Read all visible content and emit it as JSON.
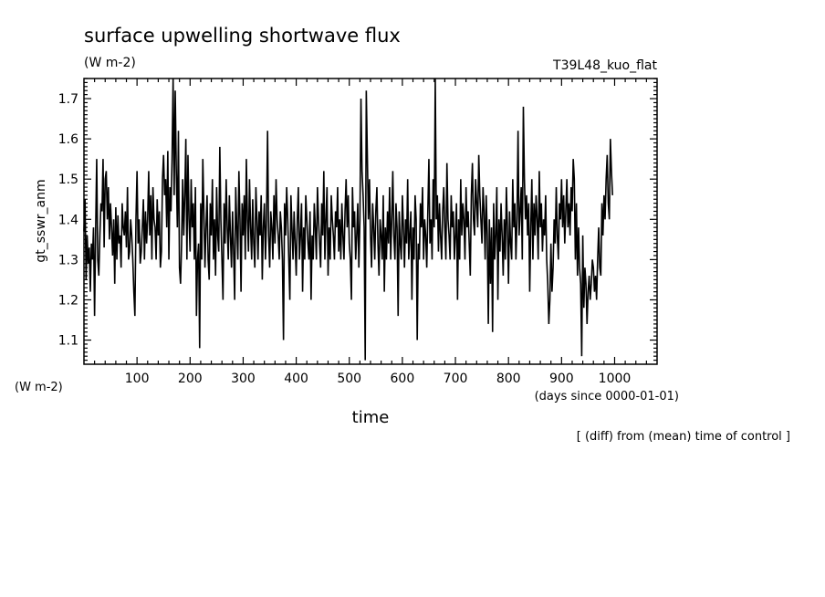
{
  "chart_data": {
    "type": "line",
    "title": "surface upwelling shortwave flux",
    "title_units": "(W m-2)",
    "experiment": "T39L48_kuo_flat",
    "ylabel": "gt_sswr_anm",
    "yunits": "(W m-2)",
    "xlabel": "time",
    "xunits": "(days since 0000-01-01)",
    "footnote": "[ (diff) from (mean) time of control ]",
    "xlim": [
      0,
      1080
    ],
    "ylim": [
      1.04,
      1.75
    ],
    "x_ticks": [
      100,
      200,
      300,
      400,
      500,
      600,
      700,
      800,
      900,
      1000
    ],
    "y_ticks": [
      1.1,
      1.2,
      1.3,
      1.4,
      1.5,
      1.6,
      1.7
    ],
    "grid": false,
    "legend": "none",
    "line_color": "#000000",
    "series": [
      {
        "x_start": 0,
        "x_step": 2,
        "values": [
          1.37,
          1.45,
          1.25,
          1.36,
          1.29,
          1.33,
          1.22,
          1.34,
          1.3,
          1.38,
          1.16,
          1.37,
          1.55,
          1.3,
          1.26,
          1.36,
          1.44,
          1.42,
          1.55,
          1.33,
          1.5,
          1.52,
          1.4,
          1.48,
          1.35,
          1.44,
          1.38,
          1.31,
          1.4,
          1.24,
          1.43,
          1.3,
          1.41,
          1.34,
          1.36,
          1.28,
          1.44,
          1.38,
          1.36,
          1.42,
          1.33,
          1.48,
          1.3,
          1.32,
          1.4,
          1.36,
          1.3,
          1.22,
          1.16,
          1.4,
          1.52,
          1.34,
          1.4,
          1.29,
          1.32,
          1.38,
          1.45,
          1.3,
          1.42,
          1.34,
          1.4,
          1.52,
          1.36,
          1.46,
          1.3,
          1.48,
          1.4,
          1.38,
          1.3,
          1.45,
          1.36,
          1.42,
          1.28,
          1.32,
          1.5,
          1.56,
          1.46,
          1.5,
          1.38,
          1.57,
          1.3,
          1.48,
          1.42,
          1.55,
          1.75,
          1.46,
          1.72,
          1.52,
          1.38,
          1.62,
          1.28,
          1.24,
          1.34,
          1.5,
          1.36,
          1.46,
          1.6,
          1.3,
          1.56,
          1.4,
          1.32,
          1.5,
          1.38,
          1.44,
          1.3,
          1.48,
          1.16,
          1.3,
          1.34,
          1.08,
          1.44,
          1.3,
          1.55,
          1.42,
          1.28,
          1.38,
          1.46,
          1.3,
          1.25,
          1.44,
          1.36,
          1.5,
          1.3,
          1.4,
          1.26,
          1.48,
          1.36,
          1.32,
          1.58,
          1.4,
          1.3,
          1.2,
          1.44,
          1.34,
          1.5,
          1.38,
          1.3,
          1.46,
          1.36,
          1.28,
          1.42,
          1.32,
          1.2,
          1.48,
          1.38,
          1.3,
          1.52,
          1.4,
          1.22,
          1.44,
          1.36,
          1.46,
          1.3,
          1.55,
          1.4,
          1.32,
          1.5,
          1.38,
          1.3,
          1.45,
          1.34,
          1.28,
          1.48,
          1.4,
          1.3,
          1.42,
          1.36,
          1.46,
          1.25,
          1.38,
          1.44,
          1.3,
          1.4,
          1.62,
          1.36,
          1.28,
          1.42,
          1.38,
          1.3,
          1.46,
          1.34,
          1.5,
          1.4,
          1.36,
          1.3,
          1.42,
          1.38,
          1.3,
          1.1,
          1.44,
          1.36,
          1.48,
          1.4,
          1.3,
          1.2,
          1.46,
          1.38,
          1.3,
          1.42,
          1.34,
          1.26,
          1.4,
          1.48,
          1.3,
          1.36,
          1.44,
          1.22,
          1.38,
          1.3,
          1.46,
          1.4,
          1.34,
          1.3,
          1.42,
          1.2,
          1.36,
          1.3,
          1.44,
          1.38,
          1.3,
          1.48,
          1.4,
          1.34,
          1.28,
          1.44,
          1.36,
          1.52,
          1.3,
          1.4,
          1.48,
          1.26,
          1.38,
          1.3,
          1.46,
          1.4,
          1.36,
          1.3,
          1.42,
          1.38,
          1.48,
          1.32,
          1.4,
          1.3,
          1.44,
          1.36,
          1.3,
          1.42,
          1.5,
          1.38,
          1.46,
          1.34,
          1.3,
          1.2,
          1.48,
          1.38,
          1.42,
          1.3,
          1.36,
          1.44,
          1.28,
          1.4,
          1.7,
          1.52,
          1.46,
          1.38,
          1.05,
          1.72,
          1.56,
          1.4,
          1.5,
          1.36,
          1.28,
          1.44,
          1.38,
          1.3,
          1.42,
          1.48,
          1.34,
          1.26,
          1.4,
          1.36,
          1.3,
          1.46,
          1.22,
          1.38,
          1.3,
          1.42,
          1.34,
          1.48,
          1.3,
          1.4,
          1.52,
          1.36,
          1.3,
          1.44,
          1.38,
          1.16,
          1.42,
          1.34,
          1.3,
          1.46,
          1.38,
          1.28,
          1.4,
          1.34,
          1.5,
          1.3,
          1.36,
          1.42,
          1.2,
          1.38,
          1.3,
          1.46,
          1.4,
          1.1,
          1.34,
          1.3,
          1.44,
          1.38,
          1.48,
          1.3,
          1.4,
          1.36,
          1.28,
          1.42,
          1.55,
          1.34,
          1.4,
          1.3,
          1.5,
          1.38,
          1.76,
          1.4,
          1.46,
          1.32,
          1.44,
          1.36,
          1.3,
          1.42,
          1.48,
          1.38,
          1.3,
          1.54,
          1.4,
          1.36,
          1.3,
          1.46,
          1.38,
          1.42,
          1.3,
          1.36,
          1.44,
          1.2,
          1.4,
          1.3,
          1.5,
          1.36,
          1.44,
          1.4,
          1.3,
          1.48,
          1.38,
          1.42,
          1.34,
          1.26,
          1.46,
          1.54,
          1.4,
          1.36,
          1.5,
          1.44,
          1.38,
          1.56,
          1.46,
          1.4,
          1.34,
          1.48,
          1.42,
          1.3,
          1.46,
          1.36,
          1.14,
          1.4,
          1.24,
          1.38,
          1.12,
          1.44,
          1.3,
          1.36,
          1.48,
          1.2,
          1.4,
          1.32,
          1.44,
          1.36,
          1.26,
          1.4,
          1.3,
          1.48,
          1.38,
          1.24,
          1.42,
          1.34,
          1.3,
          1.5,
          1.38,
          1.44,
          1.3,
          1.4,
          1.62,
          1.36,
          1.42,
          1.48,
          1.3,
          1.68,
          1.5,
          1.4,
          1.46,
          1.36,
          1.44,
          1.22,
          1.38,
          1.5,
          1.3,
          1.44,
          1.36,
          1.46,
          1.4,
          1.3,
          1.52,
          1.38,
          1.44,
          1.32,
          1.4,
          1.36,
          1.46,
          1.3,
          1.24,
          1.14,
          1.2,
          1.34,
          1.22,
          1.28,
          1.4,
          1.34,
          1.48,
          1.36,
          1.3,
          1.44,
          1.4,
          1.5,
          1.38,
          1.46,
          1.34,
          1.42,
          1.5,
          1.38,
          1.44,
          1.36,
          1.48,
          1.42,
          1.55,
          1.5,
          1.3,
          1.44,
          1.26,
          1.38,
          1.28,
          1.24,
          1.06,
          1.36,
          1.18,
          1.28,
          1.24,
          1.14,
          1.22,
          1.26,
          1.2,
          1.24,
          1.3,
          1.28,
          1.22,
          1.26,
          1.2,
          1.3,
          1.38,
          1.28,
          1.26,
          1.44,
          1.36,
          1.46,
          1.4,
          1.5,
          1.56,
          1.44,
          1.4,
          1.6,
          1.52,
          1.46
        ]
      }
    ]
  }
}
